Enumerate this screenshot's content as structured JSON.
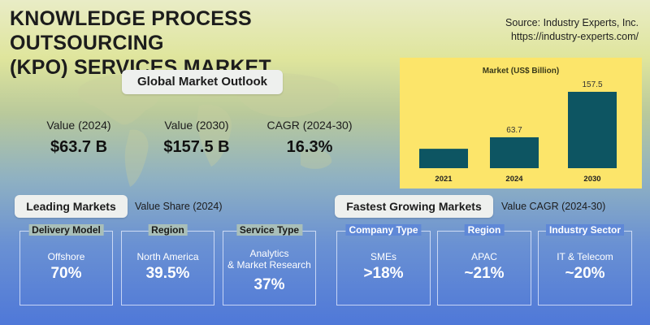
{
  "title_line1": "KNOWLEDGE PROCESS OUTSOURCING",
  "title_line2": "(KPO) SERVICES MARKET",
  "source_line1": "Source: Industry Experts, Inc.",
  "source_line2": "https://industry-experts.com/",
  "outlook": {
    "heading": "Global Market Outlook",
    "kpis": [
      {
        "label": "Value (2024)",
        "value": "$63.7 B"
      },
      {
        "label": "Value (2030)",
        "value": "$157.5 B"
      },
      {
        "label": "CAGR (2024-30)",
        "value": "16.3%"
      }
    ]
  },
  "chart_data": {
    "type": "bar",
    "title": "Market (US$ Billion)",
    "categories": [
      "2021",
      "2024",
      "2030"
    ],
    "values": [
      null,
      63.7,
      157.5
    ],
    "value_labels": [
      "",
      "63.7",
      "157.5"
    ],
    "estimated_values": [
      40,
      63.7,
      157.5
    ],
    "ylim": [
      0,
      157.5
    ],
    "bar_color": "#0d5562",
    "background": "#fce56a"
  },
  "leading": {
    "heading": "Leading Markets",
    "subheading": "Value Share (2024)",
    "cards": [
      {
        "head": "Delivery Model",
        "label": "Offshore",
        "value": "70%"
      },
      {
        "head": "Region",
        "label": "North America",
        "value": "39.5%"
      },
      {
        "head": "Service Type",
        "label": "Analytics\n& Market Research",
        "value": "37%"
      }
    ]
  },
  "fastest": {
    "heading": "Fastest Growing Markets",
    "subheading": "Value CAGR (2024-30)",
    "cards": [
      {
        "head": "Company Type",
        "label": "SMEs",
        "value": ">18%"
      },
      {
        "head": "Region",
        "label": "APAC",
        "value": "~21%"
      },
      {
        "head": "Industry Sector",
        "label": "IT & Telecom",
        "value": "~20%"
      }
    ]
  }
}
